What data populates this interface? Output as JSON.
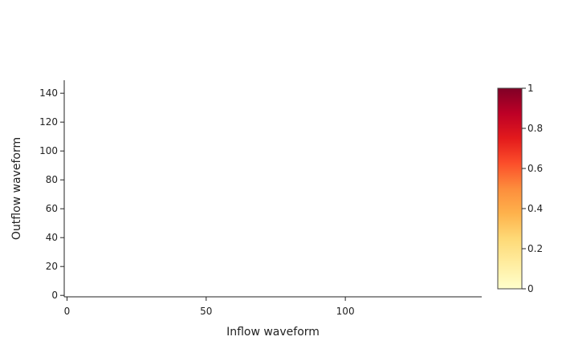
{
  "chart_data": {
    "type": "heatmap",
    "title": "",
    "xlabel": "Inflow waveform",
    "ylabel": "Outflow waveform",
    "xlim": [
      -1,
      149
    ],
    "ylim": [
      -1,
      149
    ],
    "x_ticks": [
      0,
      50,
      100
    ],
    "y_ticks": [
      0,
      20,
      40,
      60,
      80,
      100,
      120,
      140
    ],
    "colorbar": {
      "range": [
        0,
        1
      ],
      "ticks": [
        0,
        0.2,
        0.4,
        0.6,
        0.8,
        1
      ],
      "tick_labels": [
        "0",
        "0.2",
        "0.4",
        "0.6",
        "0.8",
        "1"
      ],
      "colorscale": [
        "#ffffcc",
        "#ffeda0",
        "#fed976",
        "#feb24c",
        "#fd8d3c",
        "#fc4e2a",
        "#e31a1c",
        "#bd0026",
        "#800026"
      ]
    },
    "grid": false,
    "values": []
  }
}
